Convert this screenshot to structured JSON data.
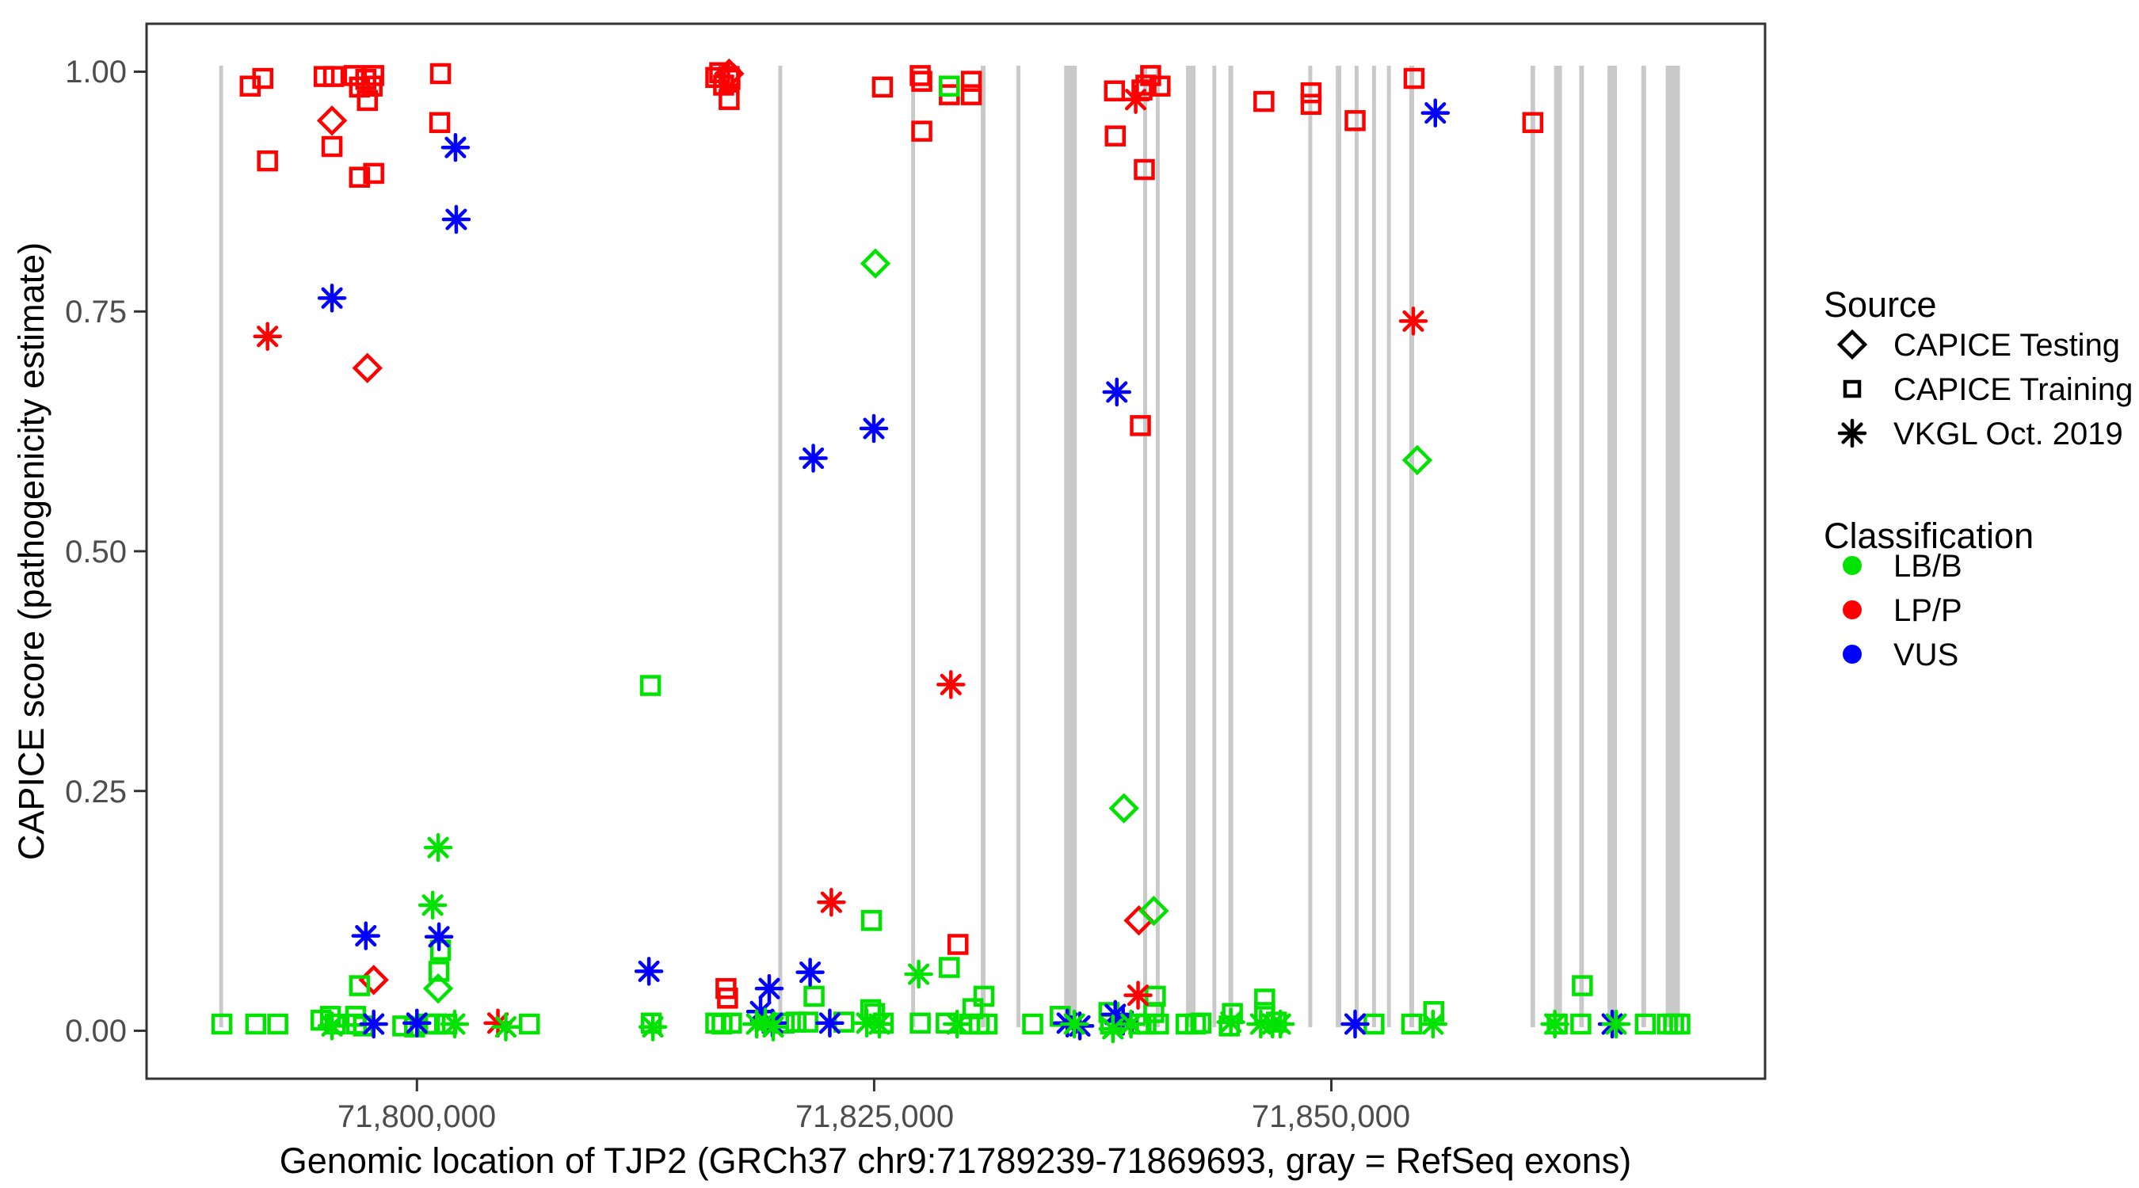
{
  "colors": {
    "LB/B": "#00e200",
    "LP/P": "#ff0000",
    "VUS": "#0000ff",
    "exon_gray": "#c9c9c9",
    "axis_text": "#4d4d4d",
    "panel_border": "#333333",
    "legend_symbol": "#000000"
  },
  "chart_data": {
    "type": "scatter",
    "title": "",
    "xlabel": "Genomic location of TJP2 (GRCh37 chr9:71789239-71869693, gray = RefSeq exons)",
    "ylabel": "CAPICE score (pathogenicity estimate)",
    "xlim": [
      71785216,
      71873716
    ],
    "ylim": [
      -0.05,
      1.05
    ],
    "grid": false,
    "legend_position": "right",
    "x_ticks": [
      {
        "value": 71800000,
        "label": "71,800,000"
      },
      {
        "value": 71825000,
        "label": "71,825,000"
      },
      {
        "value": 71850000,
        "label": "71,850,000"
      }
    ],
    "y_ticks": [
      {
        "value": 0.0,
        "label": "0.00"
      },
      {
        "value": 0.25,
        "label": "0.25"
      },
      {
        "value": 0.5,
        "label": "0.50"
      },
      {
        "value": 0.75,
        "label": "0.75"
      },
      {
        "value": 1.0,
        "label": "1.00"
      }
    ],
    "exons_note": "gray vertical bands = RefSeq exons of TJP2",
    "exons": [
      [
        71789190,
        71789400
      ],
      [
        71819760,
        71819975
      ],
      [
        71827025,
        71827240
      ],
      [
        71830830,
        71831090
      ],
      [
        71832785,
        71833000
      ],
      [
        71835390,
        71836080
      ],
      [
        71839710,
        71839925
      ],
      [
        71840400,
        71840615
      ],
      [
        71842055,
        71842570
      ],
      [
        71843495,
        71843710
      ],
      [
        71844375,
        71844635
      ],
      [
        71848740,
        71848955
      ],
      [
        71850245,
        71850545
      ],
      [
        71851275,
        71851490
      ],
      [
        71852225,
        71852440
      ],
      [
        71853040,
        71853255
      ],
      [
        71854265,
        71854525
      ],
      [
        71860890,
        71861145
      ],
      [
        71862180,
        71862610
      ],
      [
        71863555,
        71863810
      ],
      [
        71865100,
        71865620
      ],
      [
        71866950,
        71867210
      ],
      [
        71868285,
        71869060
      ]
    ],
    "legend": {
      "source_title": "Source",
      "source_items": [
        {
          "shape": "diamond",
          "label": "CAPICE Testing"
        },
        {
          "shape": "square",
          "label": "CAPICE Training"
        },
        {
          "shape": "asterisk",
          "label": "VKGL Oct. 2019"
        }
      ],
      "classification_title": "Classification",
      "class_items": [
        {
          "name": "LB/B",
          "color": "#00e200"
        },
        {
          "name": "LP/P",
          "color": "#ff0000"
        },
        {
          "name": "VUS",
          "color": "#0000ff"
        }
      ]
    },
    "series": [
      {
        "name": "CAPICE Testing",
        "shape": "diamond",
        "points": [
          [
            71795356,
            0.949,
            "LP/P"
          ],
          [
            71817071,
            0.998,
            "LP/P"
          ],
          [
            71797291,
            0.691,
            "LP/P"
          ],
          [
            71797635,
            0.053,
            "LP/P"
          ],
          [
            71839474,
            0.115,
            "LP/P"
          ],
          [
            71801161,
            0.044,
            "LB/B"
          ],
          [
            71825069,
            0.8,
            "LB/B"
          ],
          [
            71838657,
            0.232,
            "LB/B"
          ],
          [
            71840291,
            0.125,
            "LB/B"
          ],
          [
            71854696,
            0.595,
            "LB/B"
          ]
        ]
      },
      {
        "name": "CAPICE Training",
        "shape": "square",
        "points": [
          [
            71790884,
            0.985,
            "LP/P"
          ],
          [
            71791572,
            0.993,
            "LP/P"
          ],
          [
            71791830,
            0.907,
            "LP/P"
          ],
          [
            71794926,
            0.995,
            "LP/P"
          ],
          [
            71795442,
            0.995,
            "LP/P"
          ],
          [
            71795356,
            0.922,
            "LP/P"
          ],
          [
            71796560,
            0.996,
            "LP/P"
          ],
          [
            71796861,
            0.984,
            "LP/P"
          ],
          [
            71797205,
            0.992,
            "LP/P"
          ],
          [
            71797635,
            0.996,
            "LP/P"
          ],
          [
            71797549,
            0.985,
            "LP/P"
          ],
          [
            71797291,
            0.97,
            "LP/P"
          ],
          [
            71796861,
            0.89,
            "LP/P"
          ],
          [
            71797635,
            0.894,
            "LP/P"
          ],
          [
            71801290,
            0.998,
            "LP/P"
          ],
          [
            71801247,
            0.947,
            "LP/P"
          ],
          [
            71816340,
            0.994,
            "LP/P"
          ],
          [
            71816555,
            0.999,
            "LP/P"
          ],
          [
            71817071,
            0.995,
            "LP/P"
          ],
          [
            71817114,
            0.992,
            "LP/P"
          ],
          [
            71816770,
            0.986,
            "LP/P"
          ],
          [
            71817071,
            0.971,
            "LP/P"
          ],
          [
            71825456,
            0.984,
            "LP/P"
          ],
          [
            71827520,
            0.996,
            "LP/P"
          ],
          [
            71827606,
            0.99,
            "LP/P"
          ],
          [
            71827606,
            0.938,
            "LP/P"
          ],
          [
            71829111,
            0.976,
            "LP/P"
          ],
          [
            71830315,
            0.99,
            "LP/P"
          ],
          [
            71830315,
            0.976,
            "LP/P"
          ],
          [
            71838141,
            0.98,
            "LP/P"
          ],
          [
            71839646,
            0.981,
            "LP/P"
          ],
          [
            71839861,
            0.986,
            "LP/P"
          ],
          [
            71840119,
            0.996,
            "LP/P"
          ],
          [
            71840635,
            0.985,
            "LP/P"
          ],
          [
            71838184,
            0.933,
            "LP/P"
          ],
          [
            71839775,
            0.898,
            "LP/P"
          ],
          [
            71839560,
            0.631,
            "LP/P"
          ],
          [
            71848891,
            0.978,
            "LP/P"
          ],
          [
            71848891,
            0.966,
            "LP/P"
          ],
          [
            71851299,
            0.949,
            "LP/P"
          ],
          [
            71854524,
            0.993,
            "LP/P"
          ],
          [
            71846311,
            0.969,
            "LP/P"
          ],
          [
            71861017,
            0.947,
            "LP/P"
          ],
          [
            71816899,
            0.044,
            "LP/P"
          ],
          [
            71816985,
            0.034,
            "LP/P"
          ],
          [
            71829584,
            0.09,
            "LP/P"
          ],
          [
            71829111,
            0.985,
            "LB/B"
          ],
          [
            71812771,
            0.36,
            "LB/B"
          ],
          [
            71824854,
            0.115,
            "LB/B"
          ],
          [
            71829111,
            0.066,
            "LB/B"
          ],
          [
            71863726,
            0.047,
            "LB/B"
          ],
          [
            71796861,
            0.047,
            "LB/B"
          ],
          [
            71801290,
            0.084,
            "LB/B"
          ],
          [
            71801204,
            0.062,
            "LB/B"
          ],
          [
            71789336,
            0.007,
            "LB/B"
          ],
          [
            71791185,
            0.007,
            "LB/B"
          ],
          [
            71792389,
            0.007,
            "LB/B"
          ],
          [
            71794754,
            0.011,
            "LB/B"
          ],
          [
            71795270,
            0.015,
            "LB/B"
          ],
          [
            71795528,
            0.007,
            "LB/B"
          ],
          [
            71796646,
            0.015,
            "LB/B"
          ],
          [
            71796689,
            0.007,
            "LB/B"
          ],
          [
            71797076,
            0.005,
            "LB/B"
          ],
          [
            71799226,
            0.005,
            "LB/B"
          ],
          [
            71799871,
            0.004,
            "LB/B"
          ],
          [
            71800559,
            0.007,
            "LB/B"
          ],
          [
            71800989,
            0.007,
            "LB/B"
          ],
          [
            71801634,
            0.007,
            "LB/B"
          ],
          [
            71806149,
            0.007,
            "LB/B"
          ],
          [
            71812814,
            0.008,
            "LB/B"
          ],
          [
            71816340,
            0.008,
            "LB/B"
          ],
          [
            71816684,
            0.007,
            "LB/B"
          ],
          [
            71817200,
            0.008,
            "LB/B"
          ],
          [
            71820081,
            0.008,
            "LB/B"
          ],
          [
            71820726,
            0.009,
            "LB/B"
          ],
          [
            71821371,
            0.009,
            "LB/B"
          ],
          [
            71821715,
            0.036,
            "LB/B"
          ],
          [
            71823349,
            0.009,
            "LB/B"
          ],
          [
            71824811,
            0.022,
            "LB/B"
          ],
          [
            71825026,
            0.018,
            "LB/B"
          ],
          [
            71825499,
            0.008,
            "LB/B"
          ],
          [
            71827520,
            0.008,
            "LB/B"
          ],
          [
            71828939,
            0.008,
            "LB/B"
          ],
          [
            71830229,
            0.007,
            "LB/B"
          ],
          [
            71830401,
            0.023,
            "LB/B"
          ],
          [
            71830745,
            0.007,
            "LB/B"
          ],
          [
            71831003,
            0.036,
            "LB/B"
          ],
          [
            71831175,
            0.007,
            "LB/B"
          ],
          [
            71833669,
            0.007,
            "LB/B"
          ],
          [
            71835174,
            0.015,
            "LB/B"
          ],
          [
            71837840,
            0.019,
            "LB/B"
          ],
          [
            71837926,
            0.007,
            "LB/B"
          ],
          [
            71839474,
            0.007,
            "LB/B"
          ],
          [
            71839861,
            0.007,
            "LB/B"
          ],
          [
            71840549,
            0.007,
            "LB/B"
          ],
          [
            71840377,
            0.036,
            "LB/B"
          ],
          [
            71840291,
            0.019,
            "LB/B"
          ],
          [
            71842054,
            0.007,
            "LB/B"
          ],
          [
            71842570,
            0.007,
            "LB/B"
          ],
          [
            71842871,
            0.008,
            "LB/B"
          ],
          [
            71844419,
            0.005,
            "LB/B"
          ],
          [
            71844591,
            0.018,
            "LB/B"
          ],
          [
            71846354,
            0.033,
            "LB/B"
          ],
          [
            71846354,
            0.019,
            "LB/B"
          ],
          [
            71846999,
            0.009,
            "LB/B"
          ],
          [
            71852331,
            0.007,
            "LB/B"
          ],
          [
            71854395,
            0.007,
            "LB/B"
          ],
          [
            71855599,
            0.02,
            "LB/B"
          ],
          [
            71862350,
            0.007,
            "LB/B"
          ],
          [
            71863640,
            0.007,
            "LB/B"
          ],
          [
            71867166,
            0.007,
            "LB/B"
          ],
          [
            71868370,
            0.007,
            "LB/B"
          ],
          [
            71868714,
            0.007,
            "LB/B"
          ],
          [
            71869058,
            0.007,
            "LB/B"
          ]
        ]
      },
      {
        "name": "VKGL Oct. 2019",
        "shape": "asterisk",
        "points": [
          [
            71791830,
            0.724,
            "LP/P"
          ],
          [
            71839302,
            0.971,
            "LP/P"
          ],
          [
            71854481,
            0.74,
            "LP/P"
          ],
          [
            71822661,
            0.134,
            "LP/P"
          ],
          [
            71829197,
            0.361,
            "LP/P"
          ],
          [
            71804429,
            0.008,
            "LP/P"
          ],
          [
            71839431,
            0.037,
            "LP/P"
          ],
          [
            71795356,
            0.764,
            "VUS"
          ],
          [
            71802107,
            0.921,
            "VUS"
          ],
          [
            71802150,
            0.846,
            "VUS"
          ],
          [
            71821672,
            0.597,
            "VUS"
          ],
          [
            71824983,
            0.628,
            "VUS"
          ],
          [
            71838270,
            0.666,
            "VUS"
          ],
          [
            71855685,
            0.957,
            "VUS"
          ],
          [
            71797205,
            0.099,
            "VUS"
          ],
          [
            71801204,
            0.098,
            "VUS"
          ],
          [
            71812685,
            0.062,
            "VUS"
          ],
          [
            71818791,
            0.02,
            "VUS"
          ],
          [
            71819264,
            0.044,
            "VUS"
          ],
          [
            71819436,
            0.008,
            "VUS"
          ],
          [
            71821500,
            0.061,
            "VUS"
          ],
          [
            71822575,
            0.008,
            "VUS"
          ],
          [
            71800000,
            0.008,
            "VUS"
          ],
          [
            71797635,
            0.007,
            "VUS"
          ],
          [
            71835561,
            0.008,
            "VUS"
          ],
          [
            71836249,
            0.005,
            "VUS"
          ],
          [
            71838184,
            0.017,
            "VUS"
          ],
          [
            71838614,
            0.01,
            "VUS"
          ],
          [
            71851299,
            0.007,
            "VUS"
          ],
          [
            71865360,
            0.007,
            "VUS"
          ],
          [
            71801161,
            0.191,
            "LB/B"
          ],
          [
            71800860,
            0.131,
            "LB/B"
          ],
          [
            71795356,
            0.005,
            "LB/B"
          ],
          [
            71802064,
            0.007,
            "LB/B"
          ],
          [
            71804859,
            0.004,
            "LB/B"
          ],
          [
            71812900,
            0.004,
            "LB/B"
          ],
          [
            71818576,
            0.007,
            "LB/B"
          ],
          [
            71819049,
            0.009,
            "LB/B"
          ],
          [
            71819479,
            0.004,
            "LB/B"
          ],
          [
            71824596,
            0.008,
            "LB/B"
          ],
          [
            71825284,
            0.007,
            "LB/B"
          ],
          [
            71827434,
            0.059,
            "LB/B"
          ],
          [
            71829541,
            0.007,
            "LB/B"
          ],
          [
            71835948,
            0.007,
            "LB/B"
          ],
          [
            71838055,
            0.002,
            "LB/B"
          ],
          [
            71839044,
            0.007,
            "LB/B"
          ],
          [
            71844505,
            0.009,
            "LB/B"
          ],
          [
            71846139,
            0.007,
            "LB/B"
          ],
          [
            71846784,
            0.007,
            "LB/B"
          ],
          [
            71847214,
            0.007,
            "LB/B"
          ],
          [
            71855556,
            0.007,
            "LB/B"
          ],
          [
            71862221,
            0.007,
            "LB/B"
          ],
          [
            71865575,
            0.007,
            "LB/B"
          ]
        ]
      }
    ]
  }
}
